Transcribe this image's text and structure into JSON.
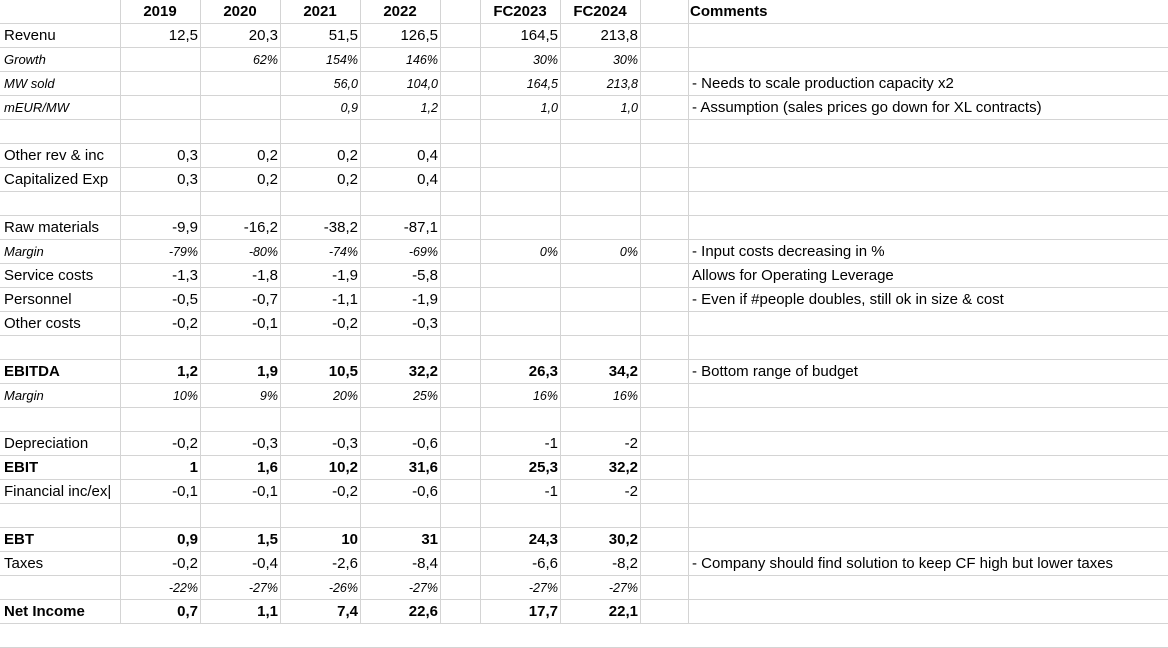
{
  "columns": {
    "headers": [
      "2019",
      "2020",
      "2021",
      "2022",
      "FC2023",
      "FC2024"
    ],
    "comments_header": "Comments"
  },
  "rows": [
    {
      "label": "Revenu",
      "style": "",
      "values": [
        "12,5",
        "20,3",
        "51,5",
        "126,5",
        "164,5",
        "213,8"
      ],
      "comment": ""
    },
    {
      "label": "Growth",
      "style": "it",
      "values": [
        "",
        "62%",
        "154%",
        "146%",
        "30%",
        "30%"
      ],
      "comment": ""
    },
    {
      "label": "MW sold",
      "style": "it",
      "values": [
        "",
        "",
        "56,0",
        "104,0",
        "164,5",
        "213,8"
      ],
      "comment": "- Needs to scale production capacity x2"
    },
    {
      "label": "mEUR/MW",
      "style": "it",
      "values": [
        "",
        "",
        "0,9",
        "1,2",
        "1,0",
        "1,0"
      ],
      "comment": "- Assumption (sales prices go down for XL contracts)"
    },
    {
      "label": "",
      "style": "",
      "values": [
        "",
        "",
        "",
        "",
        "",
        ""
      ],
      "comment": ""
    },
    {
      "label": "Other rev & inc",
      "style": "",
      "values": [
        "0,3",
        "0,2",
        "0,2",
        "0,4",
        "",
        ""
      ],
      "comment": ""
    },
    {
      "label": "Capitalized Exp",
      "style": "",
      "values": [
        "0,3",
        "0,2",
        "0,2",
        "0,4",
        "",
        ""
      ],
      "comment": ""
    },
    {
      "label": "",
      "style": "",
      "values": [
        "",
        "",
        "",
        "",
        "",
        ""
      ],
      "comment": ""
    },
    {
      "label": "Raw materials",
      "style": "",
      "values": [
        "-9,9",
        "-16,2",
        "-38,2",
        "-87,1",
        "",
        ""
      ],
      "comment": ""
    },
    {
      "label": "Margin",
      "style": "it",
      "values": [
        "-79%",
        "-80%",
        "-74%",
        "-69%",
        "0%",
        "0%"
      ],
      "comment": "- Input costs decreasing in %"
    },
    {
      "label": "Service costs",
      "style": "",
      "values": [
        "-1,3",
        "-1,8",
        "-1,9",
        "-5,8",
        "",
        ""
      ],
      "comment": "Allows for Operating Leverage"
    },
    {
      "label": "Personnel",
      "style": "",
      "values": [
        "-0,5",
        "-0,7",
        "-1,1",
        "-1,9",
        "",
        ""
      ],
      "comment": "- Even if #people doubles, still ok in size & cost"
    },
    {
      "label": "Other costs",
      "style": "",
      "values": [
        "-0,2",
        "-0,1",
        "-0,2",
        "-0,3",
        "",
        ""
      ],
      "comment": ""
    },
    {
      "label": "",
      "style": "",
      "values": [
        "",
        "",
        "",
        "",
        "",
        ""
      ],
      "comment": ""
    },
    {
      "label": "EBITDA",
      "style": "b",
      "values": [
        "1,2",
        "1,9",
        "10,5",
        "32,2",
        "26,3",
        "34,2"
      ],
      "comment": "- Bottom range of budget"
    },
    {
      "label": "Margin",
      "style": "it",
      "values": [
        "10%",
        "9%",
        "20%",
        "25%",
        "16%",
        "16%"
      ],
      "comment": ""
    },
    {
      "label": "",
      "style": "",
      "values": [
        "",
        "",
        "",
        "",
        "",
        ""
      ],
      "comment": ""
    },
    {
      "label": "Depreciation",
      "style": "",
      "values": [
        "-0,2",
        "-0,3",
        "-0,3",
        "-0,6",
        "-1",
        "-2"
      ],
      "comment": ""
    },
    {
      "label": "EBIT",
      "style": "b",
      "values": [
        "1",
        "1,6",
        "10,2",
        "31,6",
        "25,3",
        "32,2"
      ],
      "comment": ""
    },
    {
      "label": "Financial inc/ex|",
      "style": "",
      "values": [
        "-0,1",
        "-0,1",
        "-0,2",
        "-0,6",
        "-1",
        "-2"
      ],
      "comment": ""
    },
    {
      "label": "",
      "style": "",
      "values": [
        "",
        "",
        "",
        "",
        "",
        ""
      ],
      "comment": ""
    },
    {
      "label": "EBT",
      "style": "b",
      "values": [
        "0,9",
        "1,5",
        "10",
        "31",
        "24,3",
        "30,2"
      ],
      "comment": ""
    },
    {
      "label": "Taxes",
      "style": "",
      "values": [
        "-0,2",
        "-0,4",
        "-2,6",
        "-8,4",
        "-6,6",
        "-8,2"
      ],
      "comment": "- Company should find solution to keep CF high but lower taxes"
    },
    {
      "label": "",
      "style": "it",
      "values": [
        "-22%",
        "-27%",
        "-26%",
        "-27%",
        "-27%",
        "-27%"
      ],
      "comment": ""
    },
    {
      "label": "Net Income",
      "style": "b",
      "values": [
        "0,7",
        "1,1",
        "7,4",
        "22,6",
        "17,7",
        "22,1"
      ],
      "comment": ""
    }
  ]
}
